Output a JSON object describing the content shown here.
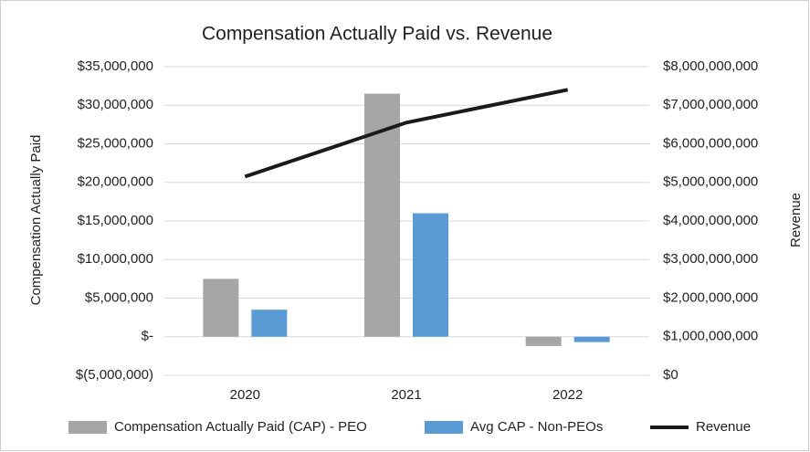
{
  "chart_data": {
    "type": "bar",
    "title": "Compensation Actually Paid vs. Revenue",
    "categories": [
      "2020",
      "2021",
      "2022"
    ],
    "ylabel": "Compensation Actually Paid",
    "y2label": "Revenue",
    "series": [
      {
        "name": "Compensation Actually Paid (CAP) - PEO",
        "color": "#a6a6a6",
        "type": "bar",
        "values": [
          7500000,
          31500000,
          -1200000
        ]
      },
      {
        "name": "Avg CAP - Non-PEOs",
        "color": "#5b9bd5",
        "type": "bar",
        "values": [
          3500000,
          16000000,
          -700000
        ]
      },
      {
        "name": "Revenue",
        "color": "#1a1a1a",
        "type": "line",
        "axis": "y2",
        "values": [
          5150000000,
          6550000000,
          7400000000
        ]
      }
    ],
    "ylim": [
      -5000000,
      35000000
    ],
    "yticks": [
      {
        "value": -5000000,
        "label": "$(5,000,000)"
      },
      {
        "value": 0,
        "label": "$-"
      },
      {
        "value": 5000000,
        "label": "$5,000,000"
      },
      {
        "value": 10000000,
        "label": "$10,000,000"
      },
      {
        "value": 15000000,
        "label": "$15,000,000"
      },
      {
        "value": 20000000,
        "label": "$20,000,000"
      },
      {
        "value": 25000000,
        "label": "$25,000,000"
      },
      {
        "value": 30000000,
        "label": "$30,000,000"
      },
      {
        "value": 35000000,
        "label": "$35,000,000"
      }
    ],
    "y2lim": [
      0,
      8000000000
    ],
    "y2ticks": [
      {
        "value": 0,
        "label": "$0"
      },
      {
        "value": 1000000000,
        "label": "$1,000,000,000"
      },
      {
        "value": 2000000000,
        "label": "$2,000,000,000"
      },
      {
        "value": 3000000000,
        "label": "$3,000,000,000"
      },
      {
        "value": 4000000000,
        "label": "$4,000,000,000"
      },
      {
        "value": 5000000000,
        "label": "$5,000,000,000"
      },
      {
        "value": 6000000000,
        "label": "$6,000,000,000"
      },
      {
        "value": 7000000000,
        "label": "$7,000,000,000"
      },
      {
        "value": 8000000000,
        "label": "$8,000,000,000"
      }
    ],
    "grid": true,
    "legend": "bottom"
  }
}
